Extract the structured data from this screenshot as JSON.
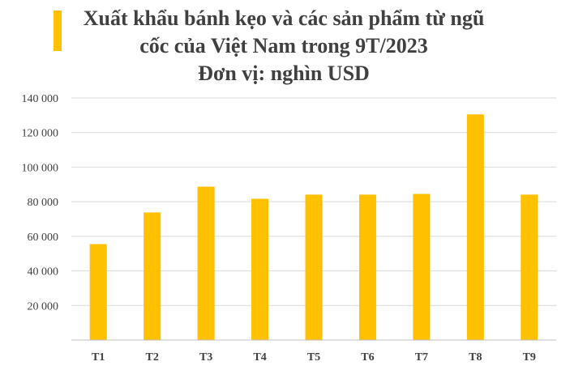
{
  "chart_data": {
    "type": "bar",
    "title_lines": [
      "Xuất khẩu bánh kẹo và các sản phẩm từ ngũ",
      "cốc của Việt Nam trong 9T/2023"
    ],
    "unit": "Đơn vị: nghìn USD",
    "categories": [
      "T1",
      "T2",
      "T3",
      "T4",
      "T5",
      "T6",
      "T7",
      "T8",
      "T9"
    ],
    "values": [
      55500,
      73800,
      88700,
      81700,
      84100,
      84100,
      84500,
      130500,
      84100
    ],
    "ylim": [
      0,
      140000
    ],
    "yticks": [
      0,
      20000,
      40000,
      60000,
      80000,
      100000,
      120000,
      140000
    ],
    "ytick_labels": [
      "",
      "20 000",
      "40 000",
      "60 000",
      "80 000",
      "100 000",
      "120 000",
      "140 000"
    ],
    "grid": true,
    "colors": {
      "bar": "#FFC000",
      "grid": "#D9D9D9",
      "axis": "#BFBFBF",
      "text": "#404040"
    }
  }
}
